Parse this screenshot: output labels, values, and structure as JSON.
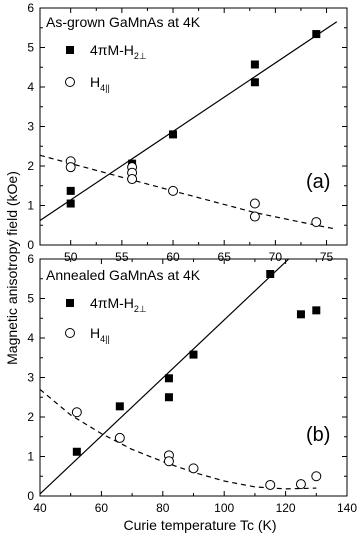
{
  "y_axis_label": "Magnetic anisotropy field (kOe)",
  "x_axis_label": "Curie temperature Tc (K)",
  "chart_data": [
    {
      "type": "scatter",
      "panel_label": "(a)",
      "title": "As-grown GaMnAs at 4K",
      "xlim": [
        47,
        77
      ],
      "ylim": [
        0,
        6
      ],
      "xticks": [
        50,
        55,
        60,
        65,
        70,
        75
      ],
      "yticks": [
        0,
        1,
        2,
        3,
        4,
        5,
        6
      ],
      "series": [
        {
          "name_main": "4πM-H",
          "name_sub": "2⊥",
          "marker": "filled-square",
          "points": [
            [
              50,
              1.37
            ],
            [
              50,
              1.05
            ],
            [
              56,
              2.06
            ],
            [
              60,
              2.8
            ],
            [
              68,
              4.57
            ],
            [
              68,
              4.12
            ],
            [
              74,
              5.34
            ]
          ],
          "fit": {
            "style": "solid",
            "x": [
              47,
              76
            ],
            "y": [
              0.62,
              5.65
            ]
          }
        },
        {
          "name_main": "H",
          "name_sub": "4||",
          "marker": "open-circle",
          "points": [
            [
              50,
              2.12
            ],
            [
              50,
              1.97
            ],
            [
              56,
              1.97
            ],
            [
              56,
              1.83
            ],
            [
              56,
              1.67
            ],
            [
              60,
              1.37
            ],
            [
              68,
              1.05
            ],
            [
              68,
              0.72
            ],
            [
              74,
              0.58
            ]
          ],
          "fit": {
            "style": "dashed",
            "x": [
              47,
              60,
              68,
              74,
              76
            ],
            "y": [
              2.27,
              1.37,
              0.82,
              0.5,
              0.4
            ]
          }
        }
      ]
    },
    {
      "type": "scatter",
      "panel_label": "(b)",
      "title": "Annealed GaMnAs at 4K",
      "xlim": [
        40,
        140
      ],
      "ylim": [
        0,
        6
      ],
      "xticks": [
        40,
        60,
        80,
        100,
        120,
        140
      ],
      "yticks": [
        0,
        1,
        2,
        3,
        4,
        5,
        6
      ],
      "series": [
        {
          "name_main": "4πM-H",
          "name_sub": "2⊥",
          "marker": "filled-square",
          "points": [
            [
              52,
              1.12
            ],
            [
              66,
              2.27
            ],
            [
              82,
              2.5
            ],
            [
              82,
              2.98
            ],
            [
              90,
              3.58
            ],
            [
              115,
              5.62
            ],
            [
              125,
              4.6
            ],
            [
              130,
              4.7
            ]
          ],
          "fit": {
            "style": "solid",
            "x": [
              40,
              121
            ],
            "y": [
              0.05,
              6.0
            ]
          }
        },
        {
          "name_main": "H",
          "name_sub": "4||",
          "marker": "open-circle",
          "points": [
            [
              52,
              2.12
            ],
            [
              66,
              1.47
            ],
            [
              82,
              1.03
            ],
            [
              82,
              0.88
            ],
            [
              90,
              0.7
            ],
            [
              115,
              0.28
            ],
            [
              125,
              0.3
            ],
            [
              130,
              0.5
            ]
          ],
          "fit": {
            "style": "dashed",
            "x": [
              40,
              50,
              60,
              70,
              80,
              90,
              100,
              110,
              120,
              130
            ],
            "y": [
              2.7,
              2.05,
              1.58,
              1.18,
              0.87,
              0.6,
              0.38,
              0.23,
              0.18,
              0.2
            ]
          }
        }
      ]
    }
  ]
}
